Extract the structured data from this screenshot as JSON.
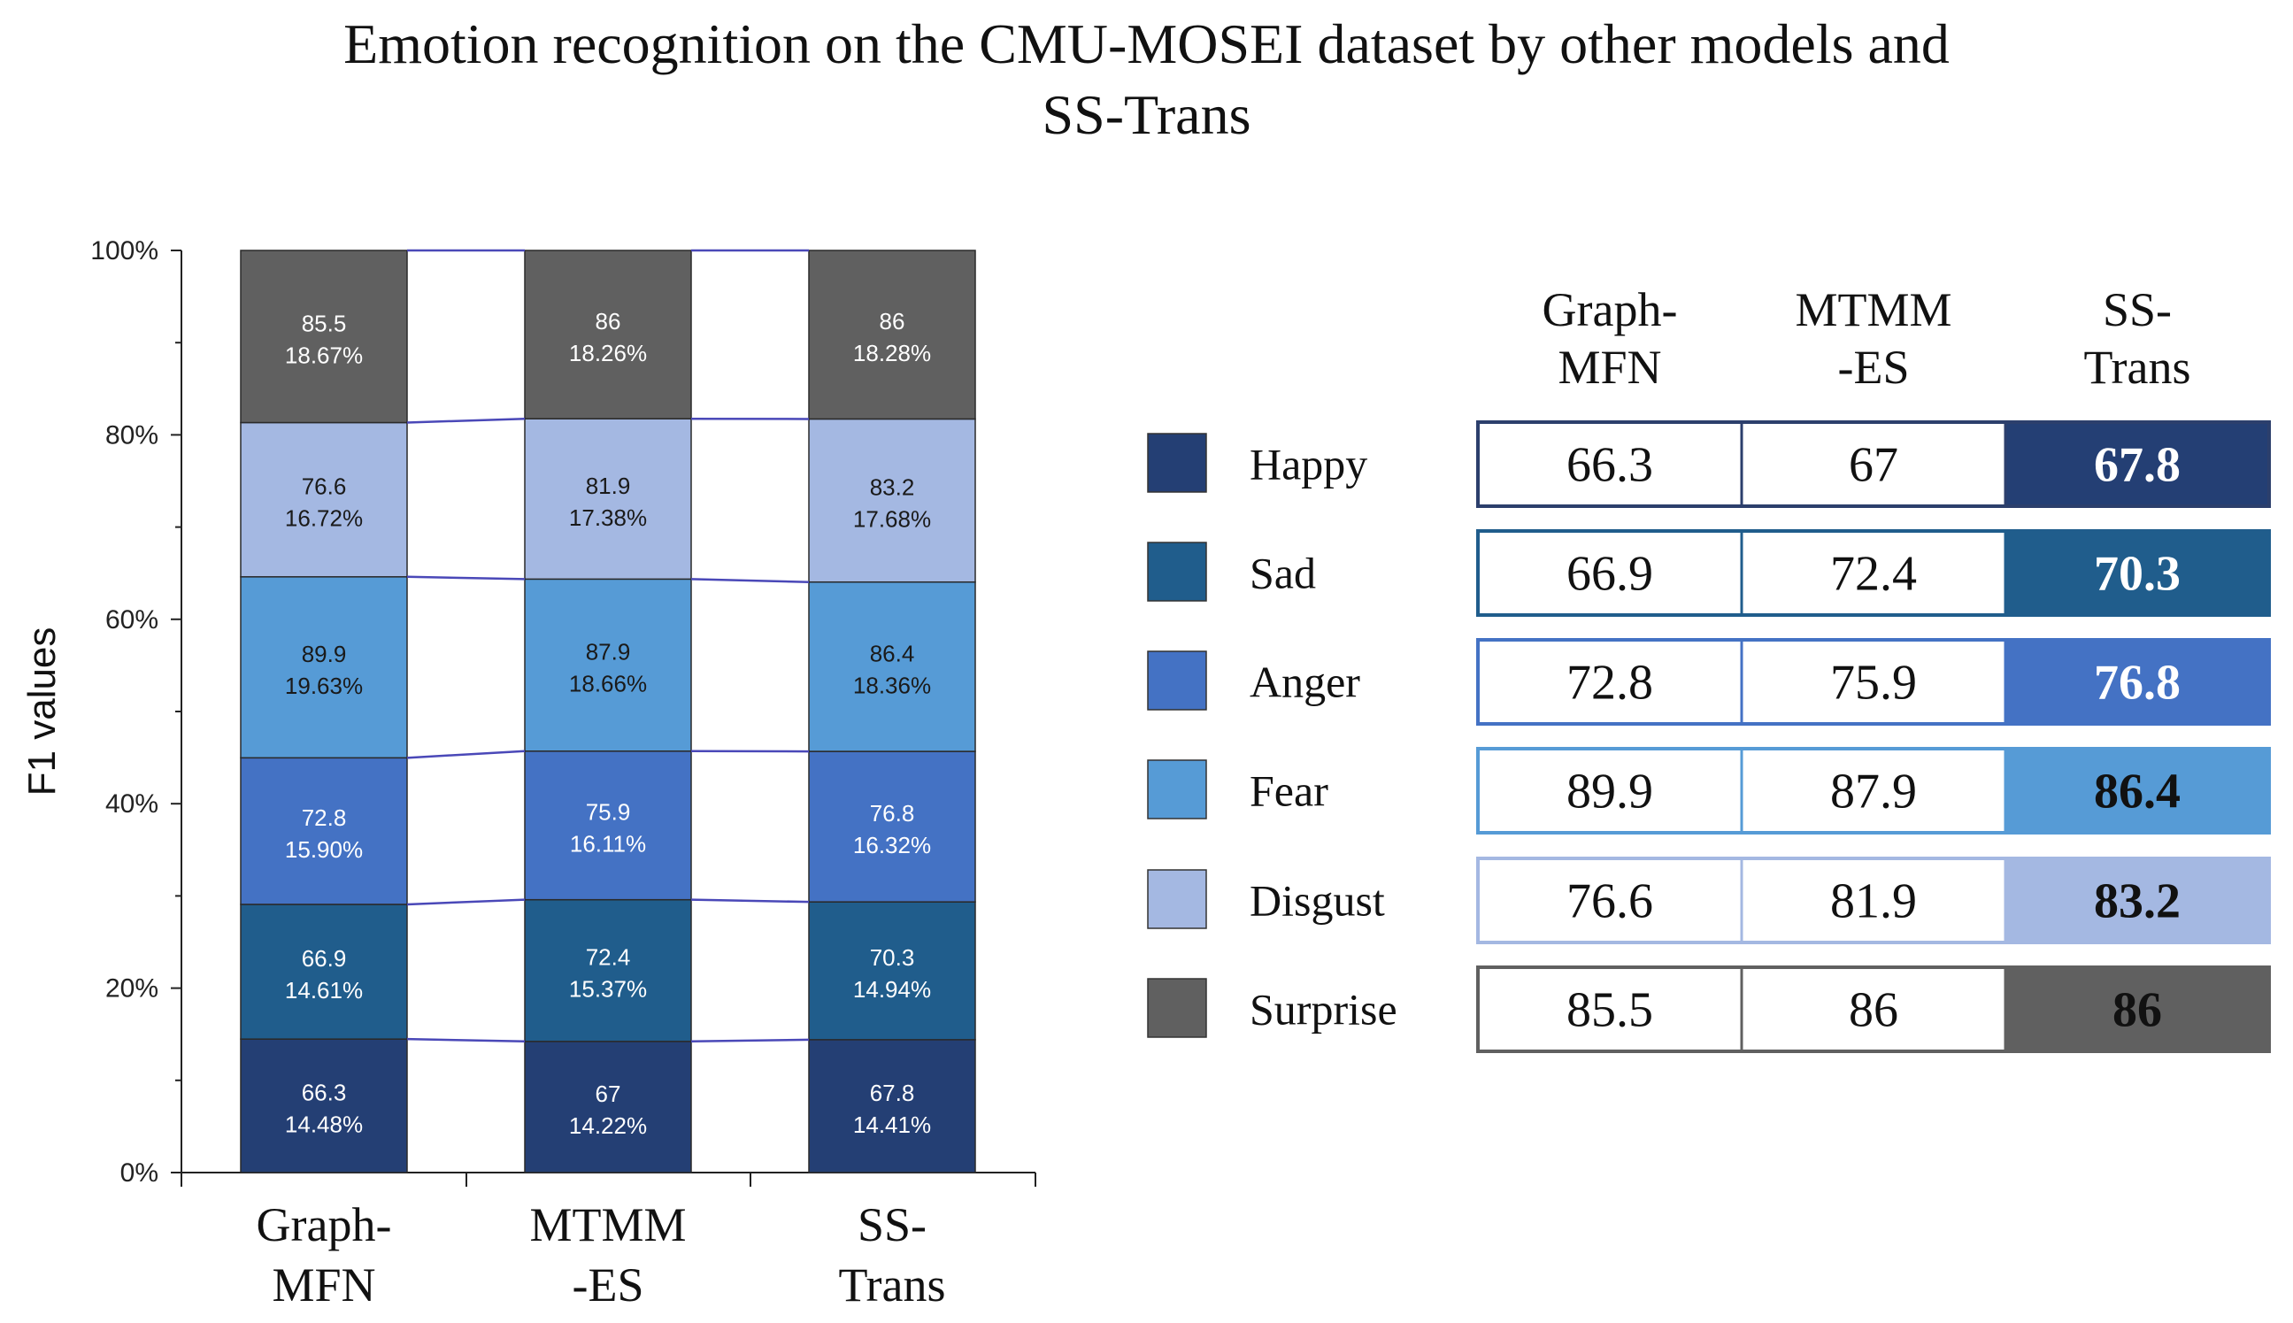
{
  "title": {
    "line1": "Emotion recognition on the CMU-MOSEI dataset by other models and",
    "line2": "SS-Trans"
  },
  "chart_data": [
    {
      "type": "bar",
      "stacked": "percent",
      "ylabel": "F1 values",
      "ylim": [
        0,
        100
      ],
      "yticks": [
        "0%",
        "20%",
        "40%",
        "60%",
        "80%",
        "100%"
      ],
      "categories": [
        [
          "Graph-",
          "MFN"
        ],
        [
          "MTMM",
          "-ES"
        ],
        [
          "SS-",
          "Trans"
        ]
      ],
      "series": [
        {
          "name": "Happy",
          "color": "#243f74",
          "text_color": "#ffffff",
          "values": [
            66.3,
            67,
            67.8
          ],
          "percents": [
            "14.48%",
            "14.22%",
            "14.41%"
          ]
        },
        {
          "name": "Sad",
          "color": "#205d8c",
          "text_color": "#ffffff",
          "values": [
            66.9,
            72.4,
            70.3
          ],
          "percents": [
            "14.61%",
            "15.37%",
            "14.94%"
          ]
        },
        {
          "name": "Anger",
          "color": "#4472c4",
          "text_color": "#ffffff",
          "values": [
            72.8,
            75.9,
            76.8
          ],
          "percents": [
            "15.90%",
            "16.11%",
            "16.32%"
          ]
        },
        {
          "name": "Fear",
          "color": "#569bd6",
          "text_color": "#1a1a1a",
          "values": [
            89.9,
            87.9,
            86.4
          ],
          "percents": [
            "19.63%",
            "18.66%",
            "18.36%"
          ]
        },
        {
          "name": "Disgust",
          "color": "#a4b8e2",
          "text_color": "#1a1a1a",
          "values": [
            76.6,
            81.9,
            83.2
          ],
          "percents": [
            "16.72%",
            "17.38%",
            "17.68%"
          ]
        },
        {
          "name": "Surprise",
          "color": "#606060",
          "text_color": "#ffffff",
          "values": [
            85.5,
            86,
            86
          ],
          "percents": [
            "18.67%",
            "18.26%",
            "18.28%"
          ]
        }
      ],
      "connector_color": "#4a48b8"
    },
    {
      "type": "table",
      "columns": [
        [
          "Graph-",
          "MFN"
        ],
        [
          "MTMM",
          "-ES"
        ],
        [
          "SS-",
          "Trans"
        ]
      ],
      "rows": [
        {
          "label": "Happy",
          "values": [
            "66.3",
            "67",
            "67.8"
          ],
          "color": "#243f74",
          "text_color": "#ffffff",
          "border": "#2c3f6c"
        },
        {
          "label": "Sad",
          "values": [
            "66.9",
            "72.4",
            "70.3"
          ],
          "color": "#205d8c",
          "text_color": "#ffffff",
          "border": "#205d8c"
        },
        {
          "label": "Anger",
          "values": [
            "72.8",
            "75.9",
            "76.8"
          ],
          "color": "#4472c4",
          "text_color": "#ffffff",
          "border": "#4472c4"
        },
        {
          "label": "Fear",
          "values": [
            "89.9",
            "87.9",
            "86.4"
          ],
          "color": "#569bd6",
          "text_color": "#111111",
          "border": "#569bd6"
        },
        {
          "label": "Disgust",
          "values": [
            "76.6",
            "81.9",
            "83.2"
          ],
          "color": "#a4b8e2",
          "text_color": "#111111",
          "border": "#a4b8e2"
        },
        {
          "label": "Surprise",
          "values": [
            "85.5",
            "86",
            "86"
          ],
          "color": "#606060",
          "text_color": "#111111",
          "border": "#606060"
        }
      ]
    }
  ]
}
